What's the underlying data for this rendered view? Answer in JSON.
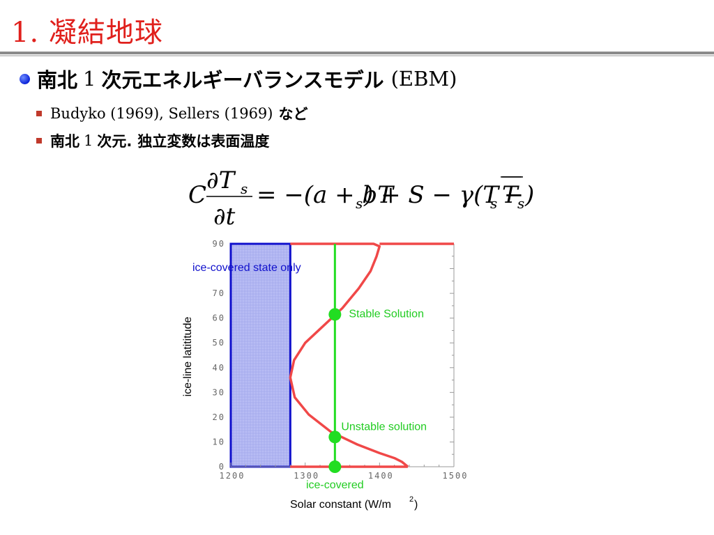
{
  "slide": {
    "title": "1. 凝結地球",
    "bullet_main_jp": "南北",
    "bullet_main_num": "1",
    "bullet_main_jp2": "次元エネルギーバランスモデル",
    "bullet_main_en": "(EBM)",
    "sub1_en": "Budyko (1969), Sellers (1969)",
    "sub1_jp": "など",
    "sub2_jp": "南北",
    "sub2_num": "1",
    "sub2_jp2": "次元.",
    "sub2_jp3": "独立変数は表面温度"
  },
  "equation": {
    "lhs_coef": "C",
    "num": "∂T",
    "num_sub": "s",
    "den": "∂t",
    "rhs": "= −(a + bT",
    "rhs_sub1": "s",
    "rhs_mid": ") + S − γ(T",
    "rhs_sub2": "s",
    "rhs_minus": " − ",
    "rhs_bar": "T",
    "rhs_sub3": "s",
    "rhs_end": ")"
  },
  "chart_data": {
    "type": "line",
    "title": "",
    "xlabel": "Solar constant (W/m",
    "xlabel_sup": "2",
    "xlabel_end": ")",
    "ylabel": "ice-line latititude",
    "xlim": [
      1200,
      1500
    ],
    "ylim": [
      0,
      90
    ],
    "xticks": [
      1200,
      1300,
      1400,
      1500
    ],
    "yticks": [
      0,
      10,
      20,
      30,
      40,
      50,
      60,
      70,
      90
    ],
    "series": [
      {
        "color": "#f04848",
        "x": [
          1280,
          1288,
          1300,
          1320,
          1345,
          1370,
          1392,
          1400,
          1396,
          1388,
          1372,
          1350,
          1325,
          1300,
          1285,
          1280,
          1286,
          1305,
          1335,
          1370,
          1400,
          1420,
          1430,
          1438
        ],
        "y": [
          90,
          90,
          90,
          90,
          90,
          90,
          90,
          89,
          85,
          79,
          72,
          64,
          57,
          50,
          43,
          36,
          28,
          21,
          14,
          9,
          5.5,
          3.5,
          2,
          0
        ]
      }
    ],
    "red_segments": [
      {
        "x": [
          1400,
          1500
        ],
        "y": [
          90,
          90
        ]
      },
      {
        "x": [
          1280,
          1438
        ],
        "y": [
          0,
          0
        ]
      }
    ],
    "ice_region": {
      "x": [
        1200,
        1280
      ],
      "y": [
        0,
        90
      ],
      "color": "#1010cc",
      "fill": "#b8bcf4",
      "label": "ice-covered state only"
    },
    "vertical_line": {
      "x": 1340,
      "color": "#22dd22"
    },
    "points": [
      {
        "x": 1340,
        "y": 61.5,
        "label": "Stable Solution"
      },
      {
        "x": 1340,
        "y": 12,
        "label": "Unstable solution"
      },
      {
        "x": 1340,
        "y": 0,
        "label": "ice-covered"
      }
    ],
    "colors": {
      "curve": "#f04848",
      "line": "#22dd22",
      "points": "#22dd22",
      "ice": "#1010cc",
      "labels_green": "#22cc22"
    }
  }
}
